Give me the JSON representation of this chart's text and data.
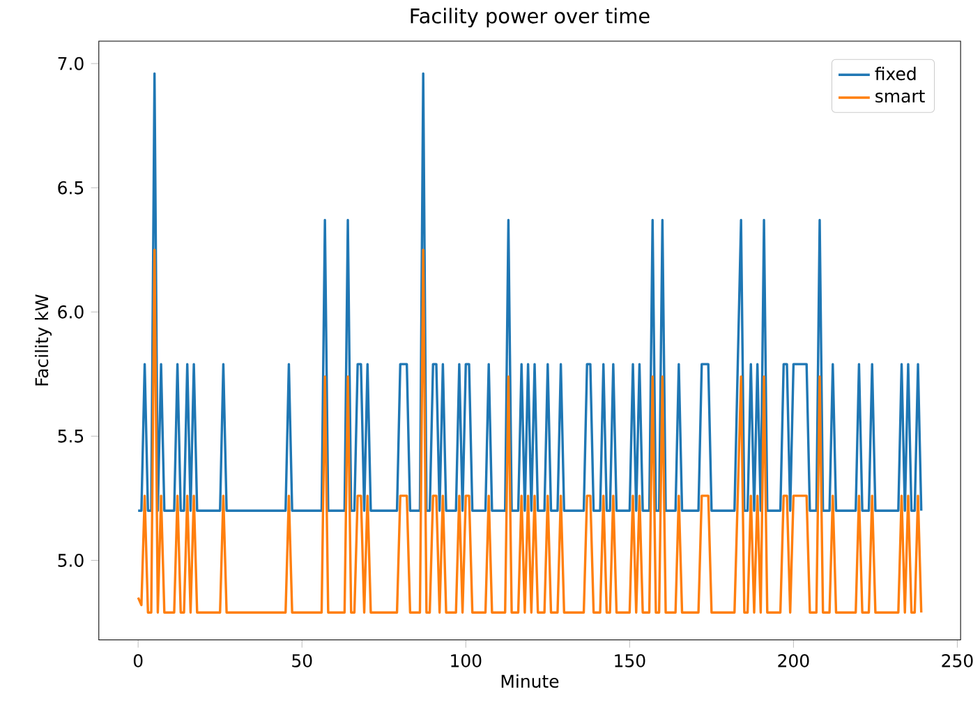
{
  "chart_data": {
    "type": "line",
    "title": "Facility power over time",
    "xlabel": "Minute",
    "ylabel": "Facility kW",
    "xlim": [
      -12,
      251
    ],
    "ylim": [
      4.68,
      7.09
    ],
    "xticks": [
      0,
      50,
      100,
      150,
      200,
      250
    ],
    "yticks": [
      {
        "value": 5,
        "label": "5.0"
      },
      {
        "value": 5.5,
        "label": "5.5"
      },
      {
        "value": 6,
        "label": "6.0"
      },
      {
        "value": 6.5,
        "label": "6.5"
      },
      {
        "value": 7,
        "label": "7.0"
      }
    ],
    "legend": "top right",
    "x": [
      0,
      1,
      2,
      3,
      4,
      5,
      6,
      7,
      8,
      11,
      12,
      13,
      14,
      15,
      16,
      17,
      18,
      25,
      26,
      27,
      45,
      46,
      47,
      56,
      57,
      58,
      63,
      64,
      65,
      66,
      67,
      68,
      69,
      70,
      71,
      79,
      80,
      82,
      83,
      86,
      87,
      88,
      89,
      90,
      91,
      92,
      93,
      94,
      97,
      98,
      99,
      100,
      101,
      102,
      106,
      107,
      108,
      112,
      113,
      114,
      116,
      117,
      118,
      119,
      120,
      121,
      122,
      124,
      125,
      126,
      128,
      129,
      130,
      136,
      137,
      138,
      139,
      141,
      142,
      143,
      144,
      145,
      146,
      150,
      151,
      152,
      153,
      154,
      156,
      157,
      158,
      159,
      160,
      161,
      164,
      165,
      166,
      171,
      172,
      174,
      175,
      182,
      183,
      184,
      185,
      186,
      187,
      188,
      189,
      190,
      191,
      192,
      196,
      197,
      198,
      199,
      200,
      204,
      205,
      207,
      208,
      209,
      211,
      212,
      213,
      219,
      220,
      221,
      223,
      224,
      225,
      232,
      233,
      234,
      235,
      236,
      237,
      238,
      239
    ],
    "series": [
      {
        "name": "fixed",
        "color": "#1f77b4",
        "values": [
          5.2,
          5.2,
          5.79,
          5.2,
          5.2,
          6.96,
          5.2,
          5.79,
          5.2,
          5.2,
          5.79,
          5.2,
          5.2,
          5.79,
          5.2,
          5.79,
          5.2,
          5.2,
          5.79,
          5.2,
          5.2,
          5.79,
          5.2,
          5.2,
          6.37,
          5.2,
          5.2,
          6.37,
          5.2,
          5.2,
          5.79,
          5.79,
          5.2,
          5.79,
          5.2,
          5.2,
          5.79,
          5.79,
          5.2,
          5.2,
          6.96,
          5.2,
          5.2,
          5.79,
          5.79,
          5.2,
          5.79,
          5.2,
          5.2,
          5.79,
          5.2,
          5.79,
          5.79,
          5.2,
          5.2,
          5.79,
          5.2,
          5.2,
          6.37,
          5.2,
          5.2,
          5.79,
          5.2,
          5.79,
          5.2,
          5.79,
          5.2,
          5.2,
          5.79,
          5.2,
          5.2,
          5.79,
          5.2,
          5.2,
          5.79,
          5.79,
          5.2,
          5.2,
          5.79,
          5.2,
          5.2,
          5.79,
          5.2,
          5.2,
          5.79,
          5.2,
          5.79,
          5.2,
          5.2,
          6.37,
          5.2,
          5.2,
          6.37,
          5.2,
          5.2,
          5.79,
          5.2,
          5.2,
          5.79,
          5.79,
          5.2,
          5.2,
          5.79,
          6.37,
          5.2,
          5.2,
          5.79,
          5.2,
          5.79,
          5.2,
          6.37,
          5.2,
          5.2,
          5.79,
          5.79,
          5.2,
          5.79,
          5.79,
          5.2,
          5.2,
          6.37,
          5.2,
          5.2,
          5.79,
          5.2,
          5.2,
          5.79,
          5.2,
          5.2,
          5.79,
          5.2,
          5.2,
          5.79,
          5.2,
          5.79,
          5.2,
          5.2,
          5.79,
          5.2
        ]
      },
      {
        "name": "smart",
        "color": "#ff7f0e",
        "values": [
          4.85,
          4.82,
          5.26,
          4.79,
          4.79,
          6.25,
          4.79,
          5.26,
          4.79,
          4.79,
          5.26,
          4.79,
          4.79,
          5.26,
          4.79,
          5.26,
          4.79,
          4.79,
          5.26,
          4.79,
          4.79,
          5.26,
          4.79,
          4.79,
          5.74,
          4.79,
          4.79,
          5.74,
          4.79,
          4.79,
          5.26,
          5.26,
          4.79,
          5.26,
          4.79,
          4.79,
          5.26,
          5.26,
          4.79,
          4.79,
          6.25,
          4.79,
          4.79,
          5.26,
          5.26,
          4.79,
          5.26,
          4.79,
          4.79,
          5.26,
          4.79,
          5.26,
          5.26,
          4.79,
          4.79,
          5.26,
          4.79,
          4.79,
          5.74,
          4.79,
          4.79,
          5.26,
          4.79,
          5.26,
          4.79,
          5.26,
          4.79,
          4.79,
          5.26,
          4.79,
          4.79,
          5.26,
          4.79,
          4.79,
          5.26,
          5.26,
          4.79,
          4.79,
          5.26,
          4.79,
          4.79,
          5.26,
          4.79,
          4.79,
          5.26,
          4.79,
          5.26,
          4.79,
          4.79,
          5.74,
          4.79,
          4.79,
          5.74,
          4.79,
          4.79,
          5.26,
          4.79,
          4.79,
          5.26,
          5.26,
          4.79,
          4.79,
          5.26,
          5.74,
          4.79,
          4.79,
          5.26,
          4.79,
          5.26,
          4.79,
          5.74,
          4.79,
          4.79,
          5.26,
          5.26,
          4.79,
          5.26,
          5.26,
          4.79,
          4.79,
          5.74,
          4.79,
          4.79,
          5.26,
          4.79,
          4.79,
          5.26,
          4.79,
          4.79,
          5.26,
          4.79,
          4.79,
          5.26,
          4.79,
          5.26,
          4.79,
          4.79,
          5.26,
          4.79
        ]
      }
    ]
  }
}
